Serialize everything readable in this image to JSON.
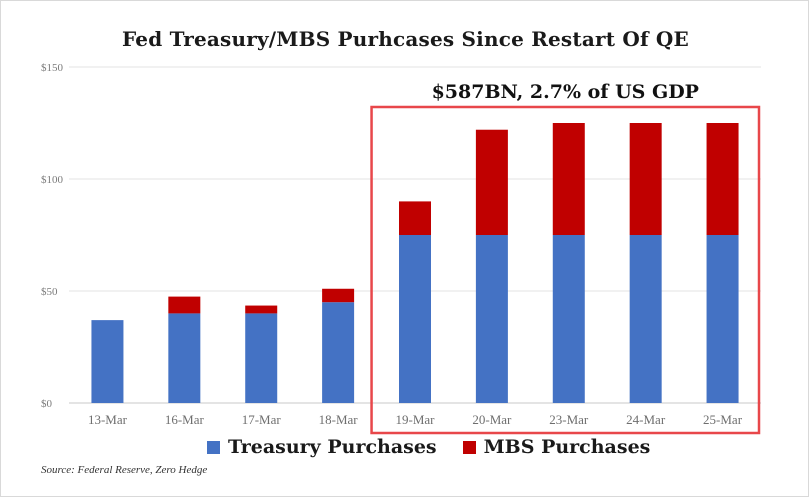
{
  "chart_data": {
    "type": "bar",
    "stacked": true,
    "title": "Fed Treasury/MBS Purhcases Since Restart Of QE",
    "xlabel": "",
    "ylabel": "",
    "ylim": [
      0,
      150
    ],
    "yticks": [
      0,
      50,
      100,
      150
    ],
    "ytick_labels": [
      "$0",
      "$50",
      "$100",
      "$150"
    ],
    "categories": [
      "13-Mar",
      "16-Mar",
      "17-Mar",
      "18-Mar",
      "19-Mar",
      "20-Mar",
      "23-Mar",
      "24-Mar",
      "25-Mar"
    ],
    "series": [
      {
        "name": "Treasury Purchases",
        "color": "#4472c4",
        "values": [
          37,
          40,
          40,
          45,
          75,
          75,
          75,
          75,
          75
        ]
      },
      {
        "name": "MBS Purchases",
        "color": "#c00000",
        "values": [
          0,
          7.5,
          3.5,
          6,
          15,
          47,
          50,
          50,
          50
        ]
      }
    ],
    "annotation": {
      "text": "$587BN, 2.7% of US GDP",
      "highlight_from": "19-Mar",
      "highlight_to": "25-Mar",
      "box_color": "#e8474a"
    },
    "legend_position": "bottom",
    "grid": true,
    "source": "Source: Federal Reserve, Zero Hedge"
  }
}
